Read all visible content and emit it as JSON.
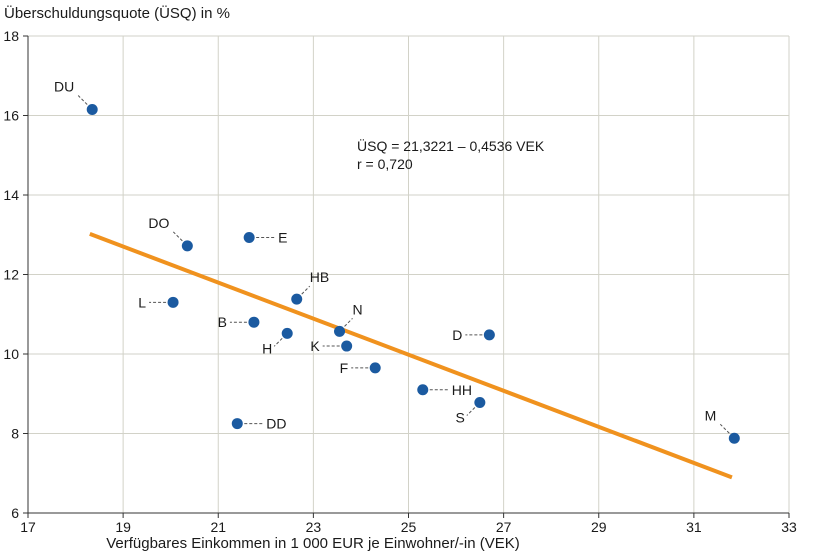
{
  "chart_data": {
    "type": "scatter",
    "title": "",
    "ylabel": "Überschuldungsquote (ÜSQ) in %",
    "xlabel": "Verfügbares Einkommen in 1 000 EUR je Einwohner/-in (VEK)",
    "xlim": [
      17,
      33
    ],
    "ylim": [
      6,
      18
    ],
    "xticks": [
      17,
      19,
      21,
      23,
      25,
      27,
      29,
      31,
      33
    ],
    "yticks": [
      6,
      8,
      10,
      12,
      14,
      16,
      18
    ],
    "grid": true,
    "colors": {
      "point": "#1b5aa0",
      "regression": "#f0921e",
      "grid": "#d2d2c8",
      "axis": "#333333",
      "leader": "#555555"
    },
    "points": [
      {
        "label": "DU",
        "x": 18.35,
        "y": 16.15,
        "label_pos": "upper-left"
      },
      {
        "label": "DO",
        "x": 20.35,
        "y": 12.72,
        "label_pos": "upper-left"
      },
      {
        "label": "E",
        "x": 21.65,
        "y": 12.93,
        "label_pos": "right"
      },
      {
        "label": "L",
        "x": 20.05,
        "y": 11.3,
        "label_pos": "left"
      },
      {
        "label": "HB",
        "x": 22.65,
        "y": 11.38,
        "label_pos": "upper-right"
      },
      {
        "label": "B",
        "x": 21.75,
        "y": 10.8,
        "label_pos": "left"
      },
      {
        "label": "H",
        "x": 22.45,
        "y": 10.52,
        "label_pos": "lower-left"
      },
      {
        "label": "N",
        "x": 23.55,
        "y": 10.57,
        "label_pos": "upper-right"
      },
      {
        "label": "K",
        "x": 23.7,
        "y": 10.2,
        "label_pos": "left"
      },
      {
        "label": "F",
        "x": 24.3,
        "y": 9.65,
        "label_pos": "left"
      },
      {
        "label": "D",
        "x": 26.7,
        "y": 10.48,
        "label_pos": "left"
      },
      {
        "label": "HH",
        "x": 25.3,
        "y": 9.1,
        "label_pos": "right"
      },
      {
        "label": "S",
        "x": 26.5,
        "y": 8.78,
        "label_pos": "lower-left"
      },
      {
        "label": "DD",
        "x": 21.4,
        "y": 8.25,
        "label_pos": "right"
      },
      {
        "label": "M",
        "x": 31.85,
        "y": 7.88,
        "label_pos": "upper-left"
      }
    ],
    "regression": {
      "intercept": 21.3221,
      "slope": -0.4536,
      "x_start": 18.3,
      "x_end": 31.8,
      "equation_label": "ÜSQ = 21,3221 – 0,4536 VEK",
      "r_label": "r = 0,720"
    }
  }
}
